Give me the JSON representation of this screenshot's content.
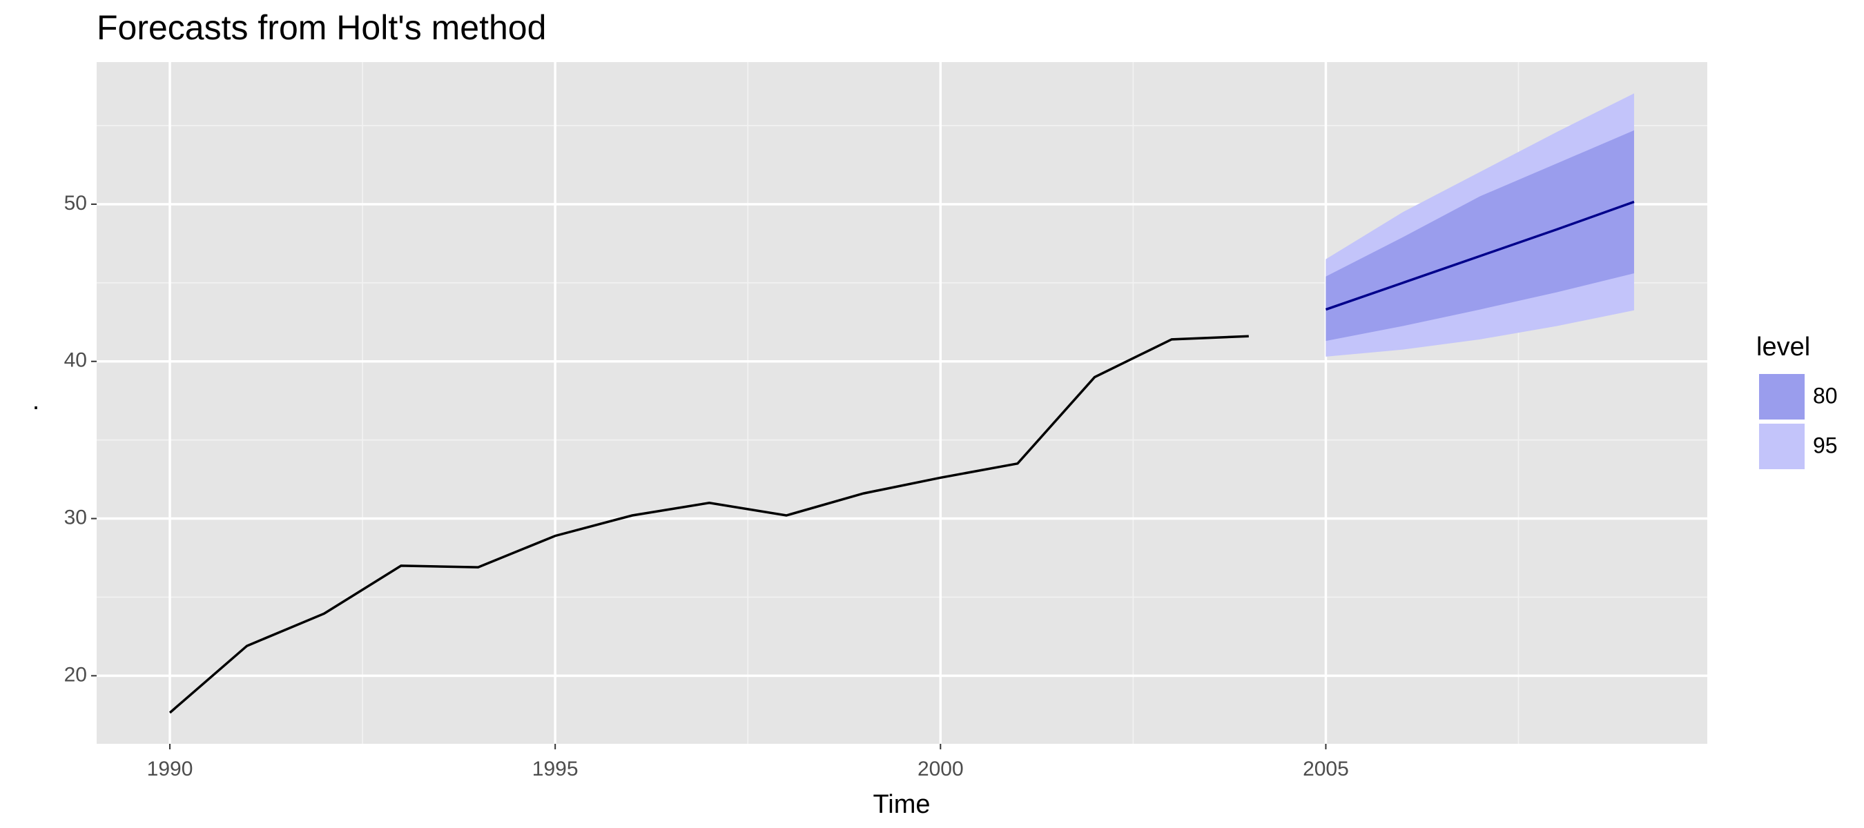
{
  "chart_data": {
    "type": "line",
    "title": "Forecasts from Holt's method",
    "x_label": "Time",
    "y_label": ".",
    "x": [
      1990,
      1991,
      1992,
      1993,
      1994,
      1995,
      1996,
      1997,
      1998,
      1999,
      2000,
      2001,
      2002,
      2003,
      2004
    ],
    "values": [
      17.65,
      21.9,
      23.95,
      27.0,
      26.9,
      28.9,
      30.2,
      31.0,
      30.2,
      31.6,
      32.6,
      33.5,
      39.0,
      41.4,
      41.6
    ],
    "color": "#000000",
    "forecast": {
      "x": [
        2005,
        2006,
        2007,
        2008,
        2009
      ],
      "mean": [
        43.3,
        45.0,
        46.7,
        48.4,
        50.15
      ],
      "color": "#00008b",
      "intervals": [
        {
          "name": "80",
          "color": "#9a9ded",
          "lower": [
            41.3,
            42.25,
            43.3,
            44.4,
            45.6
          ],
          "upper": [
            45.4,
            47.9,
            50.5,
            52.6,
            54.7
          ]
        },
        {
          "name": "95",
          "color": "#c3c4fa",
          "lower": [
            40.3,
            40.75,
            41.4,
            42.25,
            43.25
          ],
          "upper": [
            46.5,
            49.5,
            52.05,
            54.6,
            57.05
          ]
        }
      ]
    },
    "legend_title": "level",
    "xlim": [
      1989.05,
      2009.95
    ],
    "ylim": [
      15.67,
      59.04
    ],
    "xticks": [
      1990,
      1995,
      2000,
      2005
    ],
    "yticks": [
      20,
      30,
      40,
      50
    ],
    "minor_xticks": [
      1992.5,
      1997.5,
      2002.5,
      2007.5
    ],
    "minor_yticks": [
      25,
      35,
      45,
      55
    ],
    "grid": true
  }
}
